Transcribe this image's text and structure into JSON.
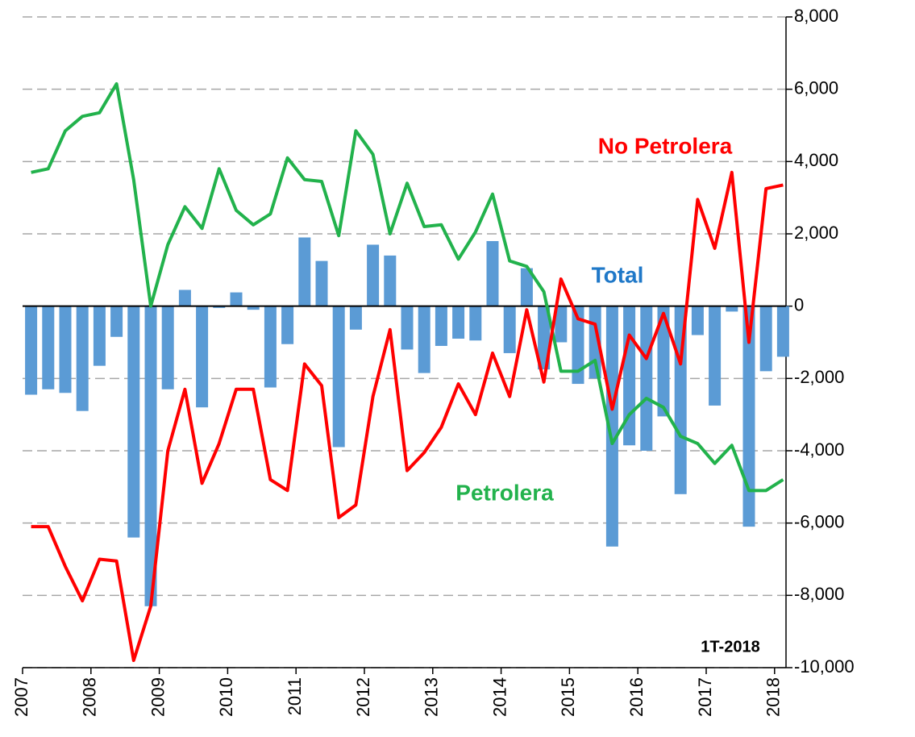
{
  "chart_data": {
    "type": "bar_line",
    "categories": [
      "2007",
      null,
      null,
      null,
      "2008",
      null,
      null,
      null,
      "2009",
      null,
      null,
      null,
      "2010",
      null,
      null,
      null,
      "2011",
      null,
      null,
      null,
      "2012",
      null,
      null,
      null,
      "2013",
      null,
      null,
      null,
      "2014",
      null,
      null,
      null,
      "2015",
      null,
      null,
      null,
      "2016",
      null,
      null,
      null,
      "2017",
      null,
      null,
      null,
      "2018"
    ],
    "series": [
      {
        "name": "Total",
        "type": "bar",
        "color": "#5b9bd5",
        "values": [
          -2450,
          -2300,
          -2400,
          -2900,
          -1650,
          -850,
          -6400,
          -8300,
          -2300,
          450,
          -2800,
          -50,
          380,
          -100,
          -2250,
          -1050,
          1900,
          1250,
          -3900,
          -650,
          1700,
          1400,
          -1200,
          -1850,
          -1100,
          -900,
          -950,
          1800,
          -1300,
          1050,
          -1750,
          -1000,
          -2150,
          -2000,
          -6650,
          -3850,
          -4000,
          -3050,
          -5200,
          -800,
          -2750,
          -150,
          -6100,
          -1800,
          -1400
        ]
      },
      {
        "name": "Petrolera",
        "type": "line",
        "color": "#22b24c",
        "values": [
          3700,
          3800,
          4850,
          5250,
          5350,
          6150,
          3500,
          0,
          1700,
          2750,
          2150,
          3800,
          2650,
          2250,
          2550,
          4100,
          3500,
          3450,
          1950,
          4850,
          4200,
          2000,
          3400,
          2200,
          2250,
          1300,
          2050,
          3100,
          1250,
          1100,
          400,
          -1800,
          -1800,
          -1500,
          -3800,
          -3000,
          -2550,
          -2800,
          -3600,
          -3800,
          -4350,
          -3850,
          -5100,
          -5100,
          -4800
        ]
      },
      {
        "name": "No Petrolera",
        "type": "line",
        "color": "#ff0000",
        "values": [
          -6100,
          -6100,
          -7200,
          -8150,
          -7000,
          -7050,
          -9800,
          -8300,
          -4000,
          -2300,
          -4900,
          -3800,
          -2300,
          -2300,
          -4800,
          -5100,
          -1600,
          -2200,
          -5850,
          -5500,
          -2500,
          -650,
          -4550,
          -4050,
          -3350,
          -2150,
          -3000,
          -1300,
          -2500,
          -100,
          -2100,
          750,
          -350,
          -500,
          -2850,
          -800,
          -1450,
          -200,
          -1600,
          2950,
          1600,
          3700,
          -1000,
          3250,
          3350
        ]
      }
    ],
    "annotation": "1T-2018",
    "ylim": [
      -10000,
      8000
    ],
    "yticks": [
      {
        "value": -10000,
        "label": "-10,000"
      },
      {
        "value": -8000,
        "label": "-8,000"
      },
      {
        "value": -6000,
        "label": "-6,000"
      },
      {
        "value": -4000,
        "label": "-4,000"
      },
      {
        "value": -2000,
        "label": "-2,000"
      },
      0,
      {
        "value": 2000,
        "label": "2,000"
      },
      {
        "value": 4000,
        "label": "4,000"
      },
      {
        "value": 6000,
        "label": "6,000"
      },
      {
        "value": 8000,
        "label": "8,000"
      }
    ],
    "grid": true,
    "y_axis_side": "right"
  }
}
